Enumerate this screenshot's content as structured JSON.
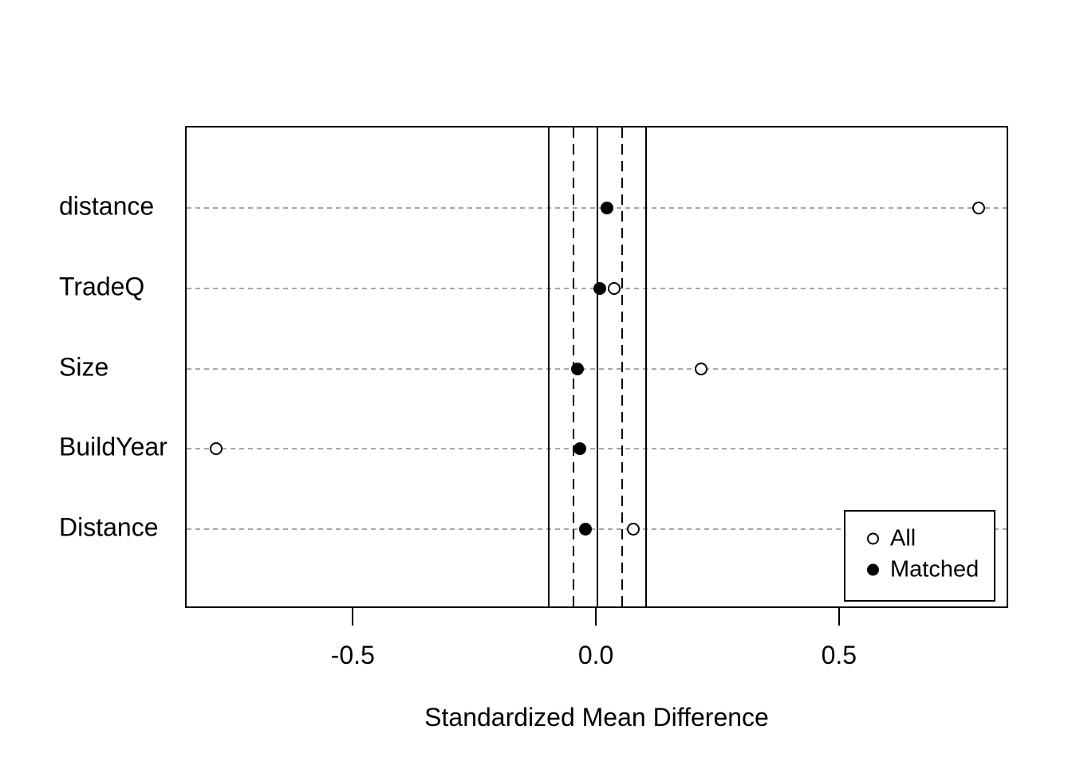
{
  "chart_data": {
    "type": "scatter",
    "subtype": "dot-plot-covariate-balance",
    "title": "",
    "xlabel": "Standardized Mean Difference",
    "ylabel": "",
    "categories": [
      "distance",
      "TradeQ",
      "Size",
      "BuildYear",
      "Distance"
    ],
    "series": [
      {
        "name": "All",
        "marker": "open-circle",
        "values": [
          0.784,
          0.034,
          0.213,
          -0.784,
          0.074
        ]
      },
      {
        "name": "Matched",
        "marker": "filled-circle",
        "values": [
          0.02,
          0.005,
          -0.041,
          -0.036,
          -0.025
        ]
      }
    ],
    "xlim": [
      -0.845,
      0.848
    ],
    "x_ticks": [
      {
        "value": -0.5,
        "label": "-0.5"
      },
      {
        "value": 0.0,
        "label": "0.0"
      },
      {
        "value": 0.5,
        "label": "0.5"
      }
    ],
    "reference_lines": [
      {
        "value": -0.1,
        "style": "solid"
      },
      {
        "value": -0.05,
        "style": "dashed"
      },
      {
        "value": 0.0,
        "style": "solid"
      },
      {
        "value": 0.05,
        "style": "dashed"
      },
      {
        "value": 0.1,
        "style": "solid"
      }
    ],
    "gridlines": "horizontal-dotted",
    "legend": {
      "position": "bottom-right",
      "entries": [
        {
          "marker": "open-circle",
          "label": "All"
        },
        {
          "marker": "filled-circle",
          "label": "Matched"
        }
      ]
    },
    "colors": {
      "foreground": "#000000",
      "gridline": "#a7a7a7",
      "background": "#ffffff"
    }
  }
}
